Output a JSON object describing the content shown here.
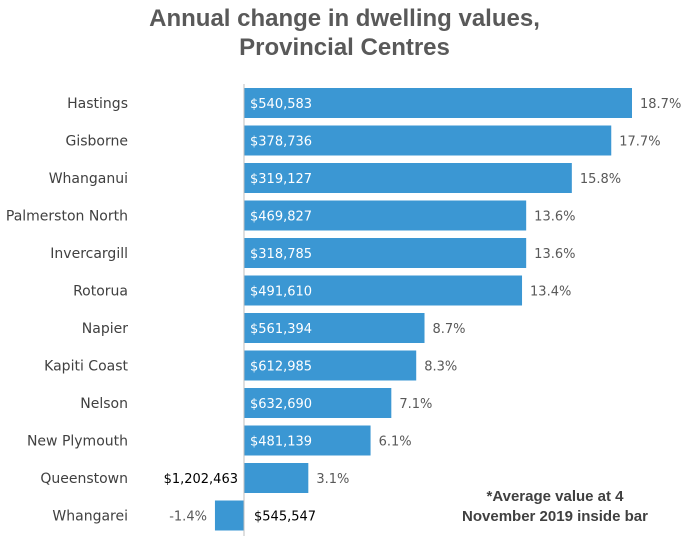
{
  "chart_data": {
    "type": "bar",
    "orientation": "horizontal",
    "title_line1": "Annual change in dwelling values,",
    "title_line2": "Provincial Centres",
    "categories": [
      "Hastings",
      "Gisborne",
      "Whanganui",
      "Palmerston North",
      "Invercargill",
      "Rotorua",
      "Napier",
      "Kapiti Coast",
      "Nelson",
      "New Plymouth",
      "Queenstown",
      "Whangarei"
    ],
    "values": [
      18.7,
      17.7,
      15.8,
      13.6,
      13.6,
      13.4,
      8.7,
      8.3,
      7.1,
      6.1,
      3.1,
      -1.4
    ],
    "value_labels": [
      "18.7%",
      "17.7%",
      "15.8%",
      "13.6%",
      "13.6%",
      "13.4%",
      "8.7%",
      "8.3%",
      "7.1%",
      "6.1%",
      "3.1%",
      "-1.4%"
    ],
    "average_values": [
      "$540,583",
      "$378,736",
      "$319,127",
      "$469,827",
      "$318,785",
      "$491,610",
      "$561,394",
      "$612,985",
      "$632,690",
      "$481,139",
      "$1,202,463",
      "$545,547"
    ],
    "xlim": [
      -1.4,
      18.7
    ],
    "bar_color": "#3b97d3",
    "grid": false,
    "note_line1": "*Average value at 4",
    "note_line2": "November 2019 inside bar"
  }
}
